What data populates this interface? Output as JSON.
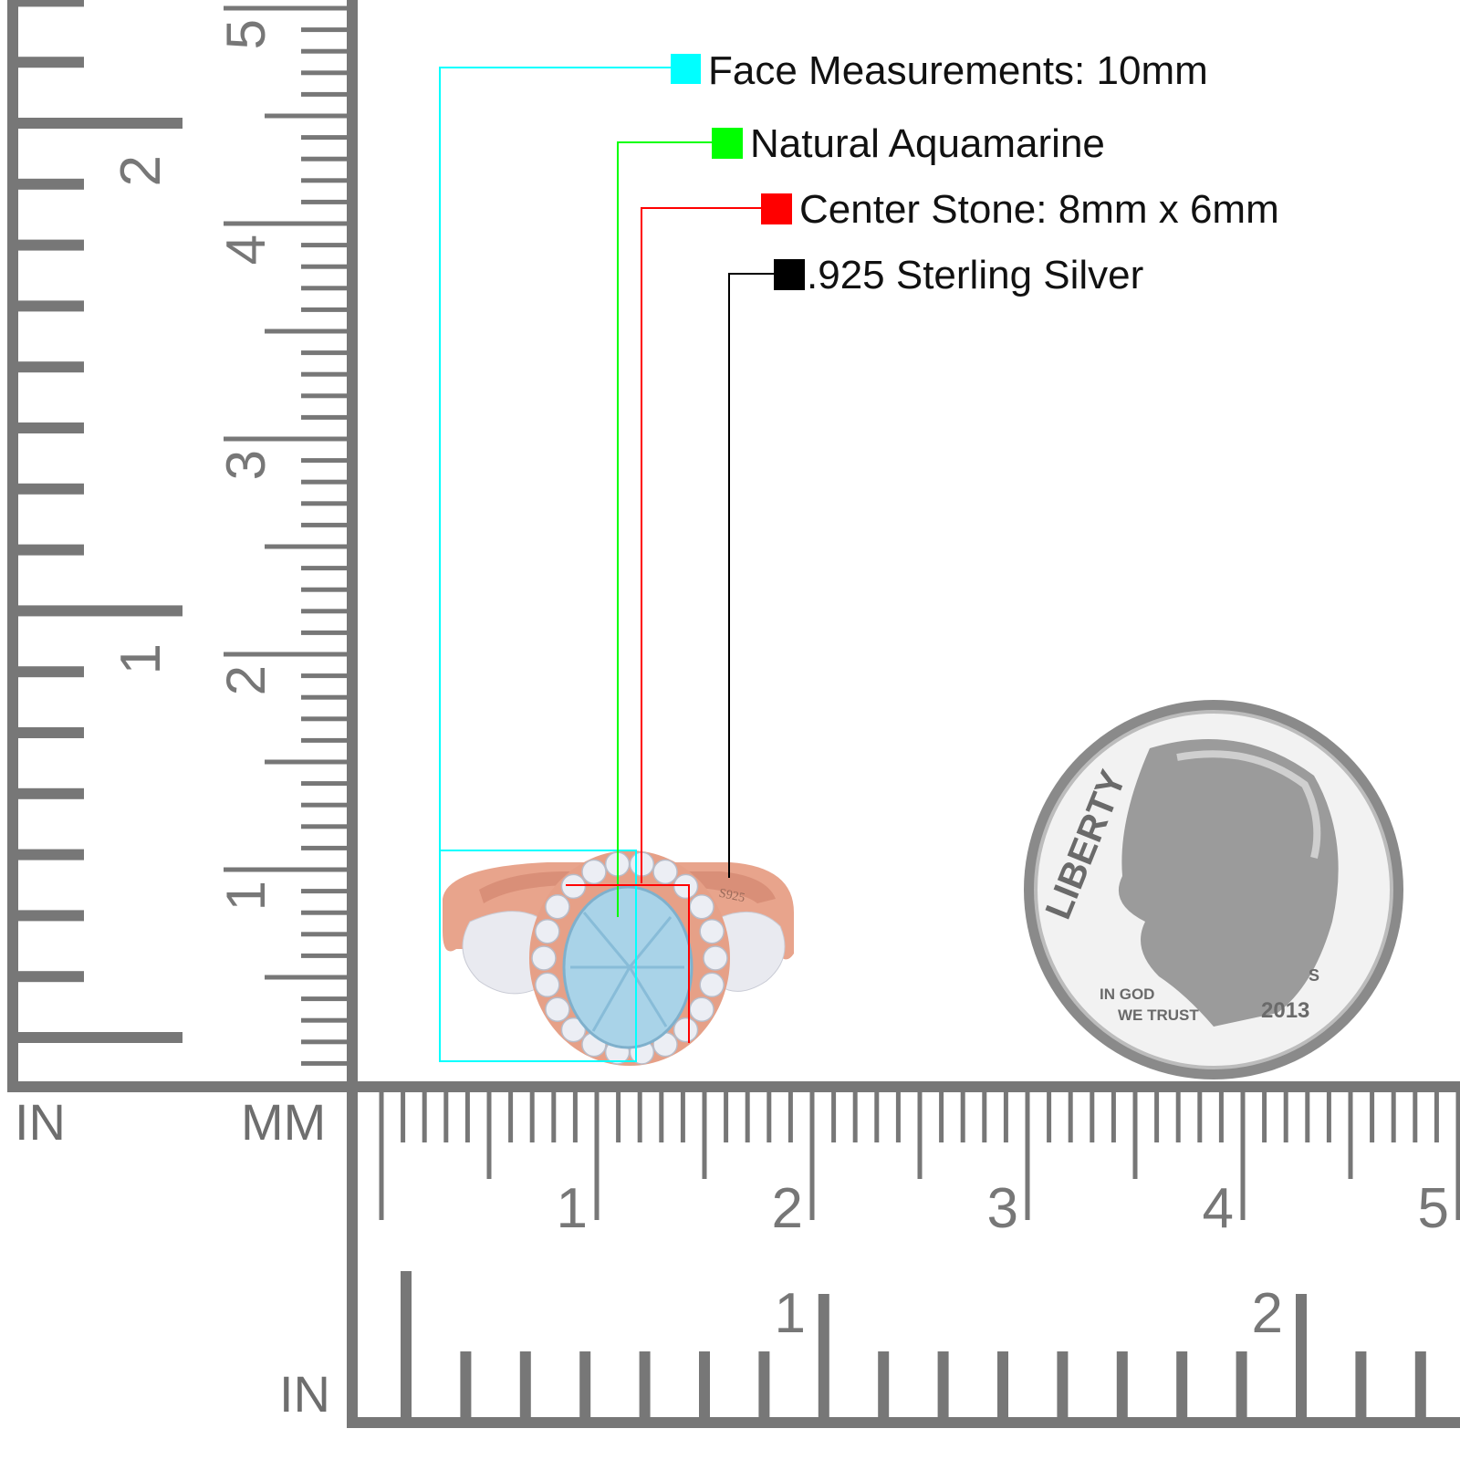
{
  "callouts": [
    {
      "label": "Face Measurements: 10mm",
      "color": "#00ffff"
    },
    {
      "label": "Natural Aquamarine",
      "color": "#00ff00"
    },
    {
      "label": "Center Stone: 8mm x 6mm",
      "color": "#ff0000"
    },
    {
      "label": ".925 Sterling Silver",
      "color": "#000000"
    }
  ],
  "rulers": {
    "left_unit": "IN",
    "left_mm_unit": "MM",
    "bottom_in_unit": "IN",
    "mm_labels": [
      "1",
      "2",
      "3",
      "4",
      "5"
    ],
    "in_labels": [
      "1",
      "2"
    ],
    "color": "#777777"
  },
  "ring": {
    "stamp": "S925",
    "metal_color": "#e8a48c",
    "center_stone_color": "#a9d3e8"
  },
  "coin": {
    "top_text": "LIBERTY",
    "motto_line1": "IN GOD",
    "motto_line2": "WE TRUST",
    "year": "2013",
    "mint_mark": "S"
  }
}
